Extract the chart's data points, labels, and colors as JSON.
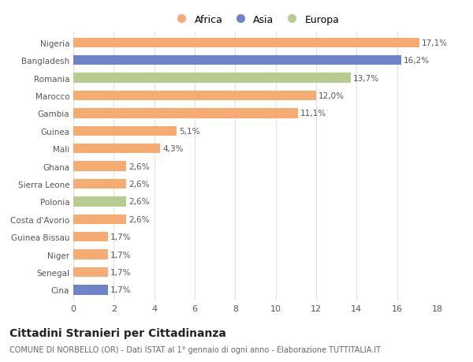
{
  "countries": [
    "Nigeria",
    "Bangladesh",
    "Romania",
    "Marocco",
    "Gambia",
    "Guinea",
    "Mali",
    "Ghana",
    "Sierra Leone",
    "Polonia",
    "Costa d'Avorio",
    "Guinea Bissau",
    "Niger",
    "Senegal",
    "Cina"
  ],
  "values": [
    17.1,
    16.2,
    13.7,
    12.0,
    11.1,
    5.1,
    4.3,
    2.6,
    2.6,
    2.6,
    2.6,
    1.7,
    1.7,
    1.7,
    1.7
  ],
  "labels": [
    "17,1%",
    "16,2%",
    "13,7%",
    "12,0%",
    "11,1%",
    "5,1%",
    "4,3%",
    "2,6%",
    "2,6%",
    "2,6%",
    "2,6%",
    "1,7%",
    "1,7%",
    "1,7%",
    "1,7%"
  ],
  "colors": [
    "#f5ab72",
    "#6e84c8",
    "#b8cc90",
    "#f5ab72",
    "#f5ab72",
    "#f5ab72",
    "#f5ab72",
    "#f5ab72",
    "#f5ab72",
    "#b8cc90",
    "#f5ab72",
    "#f5ab72",
    "#f5ab72",
    "#f5ab72",
    "#6e84c8"
  ],
  "legend_labels": [
    "Africa",
    "Asia",
    "Europa"
  ],
  "legend_colors": [
    "#f5ab72",
    "#6e84c8",
    "#b8cc90"
  ],
  "title": "Cittadini Stranieri per Cittadinanza",
  "subtitle": "COMUNE DI NORBELLO (OR) - Dati ISTAT al 1° gennaio di ogni anno - Elaborazione TUTTITALIA.IT",
  "xlim": [
    0,
    18
  ],
  "xticks": [
    0,
    2,
    4,
    6,
    8,
    10,
    12,
    14,
    16,
    18
  ],
  "background_color": "#ffffff",
  "grid_color": "#e0e0e0",
  "label_fontsize": 7.5,
  "ytick_fontsize": 7.5,
  "xtick_fontsize": 8,
  "title_fontsize": 10,
  "subtitle_fontsize": 7,
  "legend_fontsize": 9,
  "bar_height": 0.55
}
